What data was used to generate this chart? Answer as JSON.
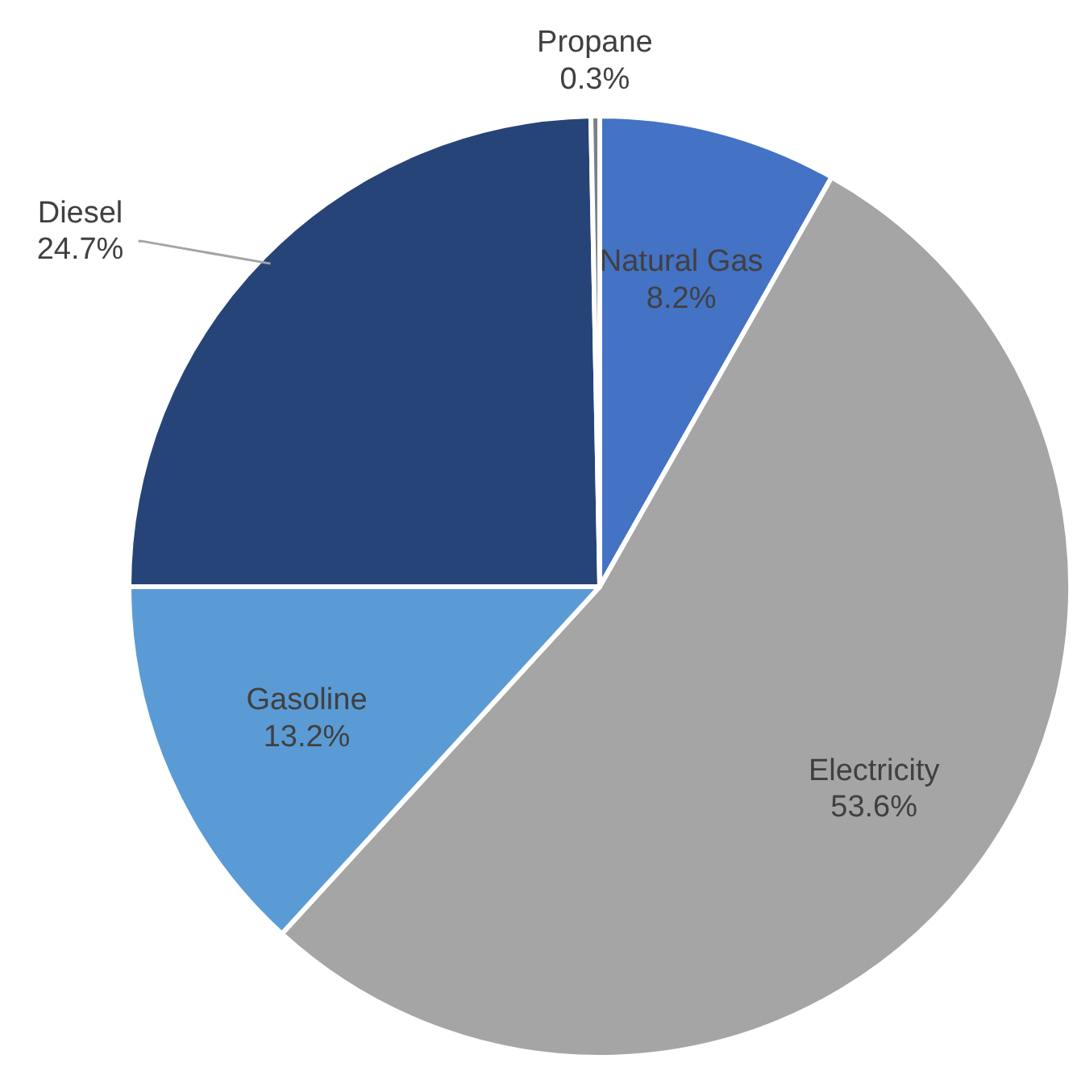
{
  "chart_data": {
    "type": "pie",
    "categories": [
      "Natural Gas",
      "Electricity",
      "Gasoline",
      "Diesel",
      "Propane"
    ],
    "values": [
      8.2,
      53.6,
      13.2,
      24.7,
      0.3
    ],
    "value_labels": [
      "8.2%",
      "53.6%",
      "13.2%",
      "24.7%",
      "0.3%"
    ],
    "colors": [
      "#4472c4",
      "#a5a5a5",
      "#5b9bd5",
      "#264478",
      "#7f7f7f"
    ]
  }
}
